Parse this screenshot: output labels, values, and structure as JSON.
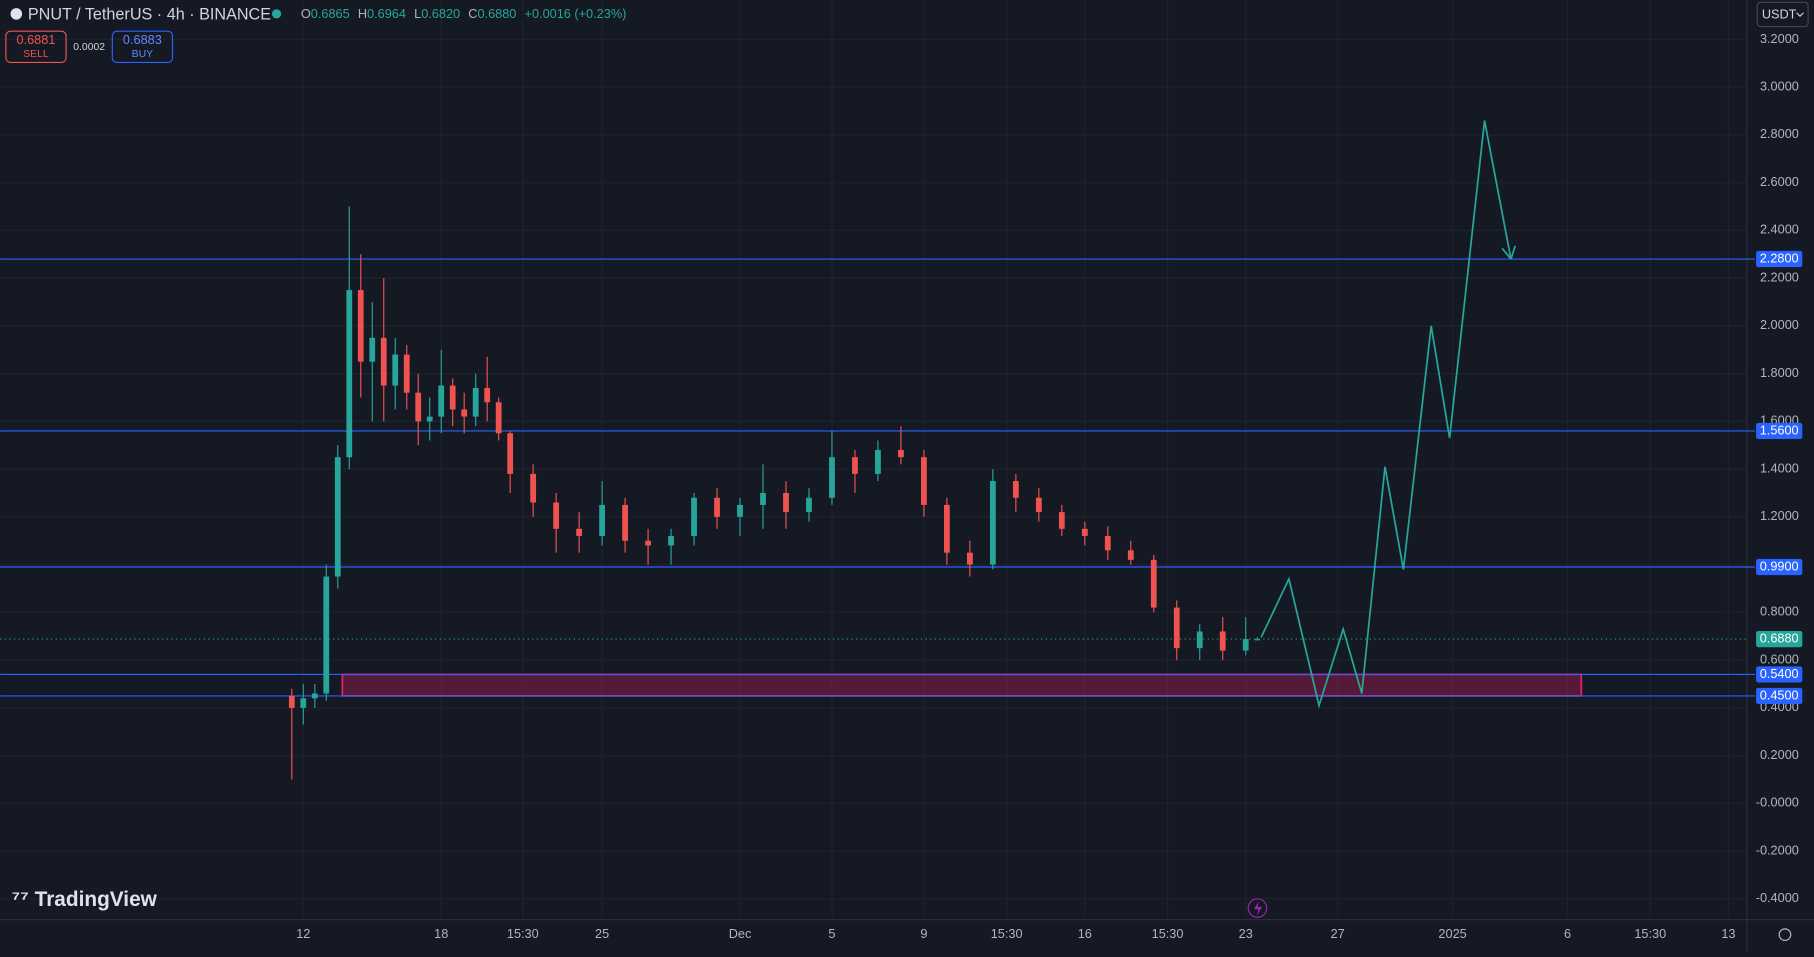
{
  "header": {
    "symbol": "PNUT / TetherUS · 4h · BINANCE",
    "ohlc": [
      {
        "key": "O",
        "value": "0.6865"
      },
      {
        "key": "H",
        "value": "0.6964"
      },
      {
        "key": "L",
        "value": "0.6820"
      },
      {
        "key": "C",
        "value": "0.6880"
      }
    ],
    "change": "+0.0016 (+0.23%)",
    "sell": {
      "price": "0.6881",
      "label": "SELL"
    },
    "spread": "0.0002",
    "buy": {
      "price": "0.6883",
      "label": "BUY"
    },
    "currency": "USDT",
    "logo": "TradingView"
  },
  "chart_data": {
    "type": "candlestick",
    "up_color": "#26a69a",
    "down_color": "#ef5350",
    "x": [
      11.5,
      12,
      12.5,
      13,
      13.5,
      14,
      14.5,
      15,
      15.5,
      16,
      16.5,
      17,
      17.5,
      18,
      18.5,
      19,
      19.5,
      20,
      20.5,
      21,
      22,
      23,
      24,
      25,
      26,
      27,
      28,
      29,
      30,
      31,
      32,
      33,
      34,
      35,
      36,
      37,
      38,
      39,
      40,
      41,
      42,
      43,
      44,
      45,
      46,
      47,
      48,
      49,
      50,
      51,
      52,
      53,
      53.5
    ],
    "open": [
      0.45,
      0.4,
      0.44,
      0.46,
      0.95,
      1.45,
      2.15,
      1.85,
      1.95,
      1.75,
      1.88,
      1.72,
      1.6,
      1.62,
      1.75,
      1.65,
      1.62,
      1.74,
      1.68,
      1.55,
      1.38,
      1.26,
      1.15,
      1.12,
      1.25,
      1.1,
      1.08,
      1.12,
      1.28,
      1.2,
      1.25,
      1.3,
      1.22,
      1.28,
      1.45,
      1.38,
      1.48,
      1.45,
      1.25,
      1.05,
      1.0,
      1.35,
      1.28,
      1.22,
      1.15,
      1.12,
      1.06,
      1.02,
      0.82,
      0.65,
      0.72,
      0.64,
      0.6865
    ],
    "high": [
      0.48,
      0.5,
      0.5,
      1.0,
      1.5,
      2.5,
      2.3,
      2.1,
      2.2,
      1.95,
      1.92,
      1.8,
      1.7,
      1.9,
      1.78,
      1.72,
      1.8,
      1.87,
      1.7,
      1.56,
      1.42,
      1.3,
      1.22,
      1.35,
      1.28,
      1.15,
      1.15,
      1.3,
      1.32,
      1.28,
      1.42,
      1.35,
      1.32,
      1.56,
      1.48,
      1.52,
      1.58,
      1.48,
      1.28,
      1.1,
      1.4,
      1.38,
      1.32,
      1.25,
      1.18,
      1.16,
      1.1,
      1.04,
      0.85,
      0.75,
      0.78,
      0.78,
      0.6964
    ],
    "low": [
      0.1,
      0.33,
      0.4,
      0.43,
      0.9,
      1.4,
      1.7,
      1.6,
      1.6,
      1.65,
      1.65,
      1.5,
      1.52,
      1.55,
      1.58,
      1.55,
      1.58,
      1.6,
      1.52,
      1.3,
      1.2,
      1.05,
      1.05,
      1.08,
      1.05,
      1.0,
      1.0,
      1.08,
      1.15,
      1.12,
      1.15,
      1.15,
      1.18,
      1.25,
      1.3,
      1.35,
      1.42,
      1.2,
      1.0,
      0.95,
      0.98,
      1.22,
      1.18,
      1.12,
      1.08,
      1.02,
      1.0,
      0.8,
      0.6,
      0.6,
      0.6,
      0.62,
      0.682
    ],
    "close": [
      0.4,
      0.44,
      0.46,
      0.95,
      1.45,
      2.15,
      1.85,
      1.95,
      1.75,
      1.88,
      1.72,
      1.6,
      1.62,
      1.75,
      1.65,
      1.62,
      1.74,
      1.68,
      1.55,
      1.38,
      1.26,
      1.15,
      1.12,
      1.25,
      1.1,
      1.08,
      1.12,
      1.28,
      1.2,
      1.25,
      1.3,
      1.22,
      1.28,
      1.45,
      1.38,
      1.48,
      1.45,
      1.25,
      1.05,
      1.0,
      1.35,
      1.28,
      1.22,
      1.15,
      1.12,
      1.06,
      1.02,
      0.82,
      0.65,
      0.72,
      0.64,
      0.688,
      0.688
    ],
    "xlim": [
      -1.19,
      74.8
    ],
    "ylim": [
      -0.487,
      3.365
    ],
    "xticks": [
      {
        "value": 12,
        "label": "12"
      },
      {
        "value": 18,
        "label": "18"
      },
      {
        "value": 21.55,
        "label": "15:30"
      },
      {
        "value": 25,
        "label": "25"
      },
      {
        "value": 31,
        "label": "Dec"
      },
      {
        "value": 35,
        "label": "5"
      },
      {
        "value": 39,
        "label": "9"
      },
      {
        "value": 42.6,
        "label": "15:30"
      },
      {
        "value": 46,
        "label": "16"
      },
      {
        "value": 49.6,
        "label": "15:30"
      },
      {
        "value": 53,
        "label": "23"
      },
      {
        "value": 57,
        "label": "27"
      },
      {
        "value": 62,
        "label": "2025"
      },
      {
        "value": 67,
        "label": "6"
      },
      {
        "value": 70.6,
        "label": "15:30"
      },
      {
        "value": 74,
        "label": "13"
      }
    ],
    "yticks": [
      {
        "value": 3.2,
        "label": "3.2000"
      },
      {
        "value": 3.0,
        "label": "3.0000"
      },
      {
        "value": 2.8,
        "label": "2.8000"
      },
      {
        "value": 2.6,
        "label": "2.6000"
      },
      {
        "value": 2.4,
        "label": "2.4000"
      },
      {
        "value": 2.2,
        "label": "2.2000"
      },
      {
        "value": 2.0,
        "label": "2.0000"
      },
      {
        "value": 1.8,
        "label": "1.8000"
      },
      {
        "value": 1.6,
        "label": "1.6000"
      },
      {
        "value": 1.4,
        "label": "1.4000"
      },
      {
        "value": 1.2,
        "label": "1.2000"
      },
      {
        "value": 1.0,
        "label": "1.0000"
      },
      {
        "value": 0.8,
        "label": "0.8000"
      },
      {
        "value": 0.6,
        "label": "0.6000"
      },
      {
        "value": 0.4,
        "label": "0.4000"
      },
      {
        "value": 0.2,
        "label": "0.2000"
      },
      {
        "value": 0,
        "label": "-0.0000"
      },
      {
        "value": -0.2,
        "label": "-0.2000"
      },
      {
        "value": -0.4,
        "label": "-0.4000"
      }
    ],
    "levels": [
      {
        "value": 2.28,
        "label": "2.2800"
      },
      {
        "value": 1.56,
        "label": "1.5600"
      },
      {
        "value": 0.99,
        "label": "0.9900"
      },
      {
        "value": 0.54,
        "label": "0.5400"
      },
      {
        "value": 0.45,
        "label": "0.4500"
      }
    ],
    "level_color": "#2962ff",
    "current_price": {
      "value": 0.688,
      "label": "0.6880"
    },
    "zone": {
      "x": [
        13.7,
        67.6
      ],
      "y": [
        0.45,
        0.54
      ],
      "color": "#e91e63"
    },
    "projection": {
      "color": "#26a69a",
      "x": [
        53.67,
        54.88,
        56.19,
        57.24,
        58.05,
        59.06,
        59.86,
        61.07,
        61.87,
        63.39,
        64.54
      ],
      "y": [
        0.695,
        0.94,
        0.41,
        0.73,
        0.46,
        1.41,
        0.98,
        2.0,
        1.53,
        2.86,
        2.28
      ]
    }
  }
}
